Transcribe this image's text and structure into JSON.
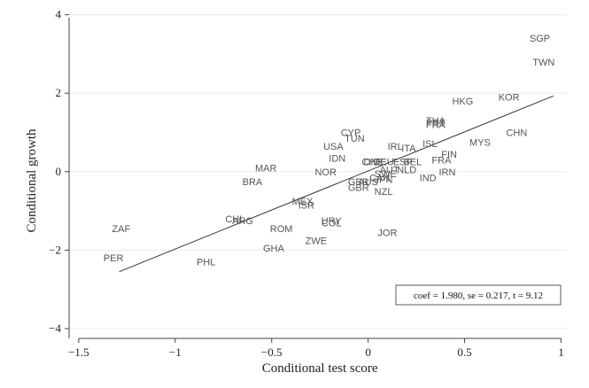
{
  "chart_data": {
    "type": "scatter",
    "title": "",
    "xlabel": "Conditional test score",
    "ylabel": "Conditional growth",
    "xlim": [
      -1.55,
      1.03
    ],
    "ylim": [
      -4.25,
      4.15
    ],
    "xticks": [
      -1.5,
      -1,
      -0.5,
      0,
      0.5,
      1
    ],
    "xtick_labels": [
      "−1.5",
      "−1",
      "−0.5",
      "0",
      "0.5",
      "1"
    ],
    "yticks": [
      -4,
      -2,
      0,
      2,
      4
    ],
    "ytick_labels": [
      "−4",
      "−2",
      "0",
      "2",
      "4"
    ],
    "grid": "horizontal",
    "fit_line": {
      "x": [
        -1.29,
        0.96
      ],
      "y": [
        -2.55,
        1.93
      ]
    },
    "annotation": "coef = 1.980, se = 0.217, t = 9.12",
    "points": [
      {
        "label": "SGP",
        "x": 0.89,
        "y": 3.4
      },
      {
        "label": "TWN",
        "x": 0.91,
        "y": 2.8
      },
      {
        "label": "HKG",
        "x": 0.49,
        "y": 1.8
      },
      {
        "label": "KOR",
        "x": 0.73,
        "y": 1.9
      },
      {
        "label": "THA",
        "x": 0.35,
        "y": 1.3
      },
      {
        "label": "PRT",
        "x": 0.35,
        "y": 1.25
      },
      {
        "label": "FRA",
        "x": 0.35,
        "y": 1.2
      },
      {
        "label": "CHN",
        "x": 0.77,
        "y": 1.0
      },
      {
        "label": "MYS",
        "x": 0.58,
        "y": 0.75
      },
      {
        "label": "CYP",
        "x": -0.09,
        "y": 1.0
      },
      {
        "label": "TUN",
        "x": -0.07,
        "y": 0.85
      },
      {
        "label": "USA",
        "x": -0.18,
        "y": 0.65
      },
      {
        "label": "IRL",
        "x": 0.14,
        "y": 0.65
      },
      {
        "label": "ITA",
        "x": 0.21,
        "y": 0.6
      },
      {
        "label": "ISL",
        "x": 0.32,
        "y": 0.72
      },
      {
        "label": "FIN",
        "x": 0.42,
        "y": 0.45
      },
      {
        "label": "FRA",
        "x": 0.38,
        "y": 0.3
      },
      {
        "label": "IDN",
        "x": -0.16,
        "y": 0.35
      },
      {
        "label": "DNK",
        "x": 0.03,
        "y": 0.25
      },
      {
        "label": "CHE",
        "x": 0.02,
        "y": 0.25
      },
      {
        "label": "DEU",
        "x": 0.08,
        "y": 0.25
      },
      {
        "label": "ESP",
        "x": 0.18,
        "y": 0.25
      },
      {
        "label": "BEL",
        "x": 0.23,
        "y": 0.25
      },
      {
        "label": "NLD",
        "x": 0.2,
        "y": 0.05
      },
      {
        "label": "AUT",
        "x": 0.11,
        "y": 0.05
      },
      {
        "label": "SWE",
        "x": 0.09,
        "y": -0.05
      },
      {
        "label": "CAN",
        "x": 0.06,
        "y": -0.15
      },
      {
        "label": "JPN",
        "x": 0.08,
        "y": -0.2
      },
      {
        "label": "IRN",
        "x": 0.41,
        "y": 0.0
      },
      {
        "label": "IND",
        "x": 0.31,
        "y": -0.15
      },
      {
        "label": "MAR",
        "x": -0.53,
        "y": 0.1
      },
      {
        "label": "NOR",
        "x": -0.22,
        "y": 0.0
      },
      {
        "label": "BRA",
        "x": -0.6,
        "y": -0.25
      },
      {
        "label": "GBR",
        "x": -0.05,
        "y": -0.25
      },
      {
        "label": "AUS",
        "x": 0.0,
        "y": -0.25
      },
      {
        "label": "NZL",
        "x": 0.08,
        "y": -0.5
      },
      {
        "label": "GBR",
        "x": -0.05,
        "y": -0.4
      },
      {
        "label": "MEX",
        "x": -0.34,
        "y": -0.75
      },
      {
        "label": "ISR",
        "x": -0.32,
        "y": -0.85
      },
      {
        "label": "CHL",
        "x": -0.69,
        "y": -1.2
      },
      {
        "label": "ARG",
        "x": -0.65,
        "y": -1.25
      },
      {
        "label": "URY",
        "x": -0.19,
        "y": -1.25
      },
      {
        "label": "COL",
        "x": -0.19,
        "y": -1.3
      },
      {
        "label": "ROM",
        "x": -0.45,
        "y": -1.45
      },
      {
        "label": "JOR",
        "x": 0.1,
        "y": -1.55
      },
      {
        "label": "ZWE",
        "x": -0.27,
        "y": -1.75
      },
      {
        "label": "GHA",
        "x": -0.49,
        "y": -1.95
      },
      {
        "label": "ZAF",
        "x": -1.28,
        "y": -1.45
      },
      {
        "label": "PER",
        "x": -1.32,
        "y": -2.2
      },
      {
        "label": "PHL",
        "x": -0.84,
        "y": -2.3
      }
    ]
  }
}
